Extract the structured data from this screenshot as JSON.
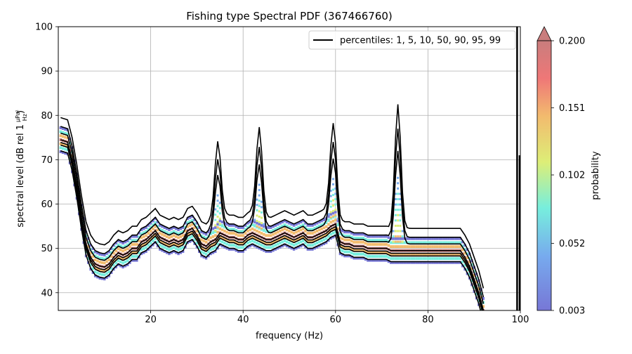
{
  "chart_data": {
    "type": "heatmap",
    "title": "Fishing type Spectral PDF (367466760)",
    "xlabel": "frequency (Hz)",
    "ylabel": "spectral level (dB rel 1",
    "ylabel_unit_num": "μPa²",
    "ylabel_unit_den": "Hz",
    "ylabel_suffix": ")",
    "xlim": [
      0,
      100
    ],
    "ylim": [
      36,
      100
    ],
    "x_ticks": [
      20,
      40,
      60,
      80,
      100
    ],
    "y_ticks": [
      40,
      50,
      60,
      70,
      80,
      90,
      100
    ],
    "grid": true,
    "legend": {
      "position": "top-right",
      "label": "percentiles: 1, 5, 10, 50, 90, 95, 99"
    },
    "colorbar": {
      "label": "probability",
      "ticks": [
        "0.003",
        "0.052",
        "0.102",
        "0.151",
        "0.200"
      ],
      "min": 0.003,
      "max": 0.2,
      "extend": "max"
    },
    "median_curve": {
      "frequency": [
        0.5,
        2,
        3,
        4,
        5,
        6,
        7,
        8,
        9,
        10,
        11,
        12,
        13,
        14,
        15,
        16,
        17,
        18,
        19,
        20,
        21,
        22,
        23,
        24,
        25,
        26,
        27,
        28,
        29,
        30,
        31,
        32,
        33,
        34,
        35,
        36,
        37,
        38,
        39,
        40,
        41,
        42,
        43,
        44,
        45,
        46,
        47,
        48,
        49,
        50,
        51,
        52,
        53,
        54,
        55,
        56,
        57,
        58,
        59,
        60,
        61,
        62,
        63,
        64,
        65,
        66,
        67,
        68,
        69,
        70,
        71,
        72,
        73,
        74,
        75,
        76,
        77,
        78,
        79,
        80,
        81,
        82,
        83,
        84,
        85,
        86,
        87,
        88,
        89,
        90,
        91,
        92
      ],
      "level": [
        74.5,
        74,
        70,
        64,
        57,
        51,
        48,
        46.5,
        46,
        45.8,
        46.5,
        48,
        49,
        48.5,
        49,
        50,
        50,
        51.5,
        52,
        53,
        54,
        52.5,
        52,
        51.5,
        52,
        51.5,
        52,
        54,
        54.5,
        53,
        51,
        50.5,
        51.5,
        52,
        53.5,
        53,
        52.5,
        52.5,
        52,
        52,
        53,
        53.5,
        53,
        52.5,
        52,
        52,
        52.5,
        53,
        53.5,
        53,
        52.5,
        53,
        53.5,
        52.5,
        52.5,
        53,
        53.5,
        54,
        55,
        55.5,
        51.5,
        51,
        51,
        50.5,
        50.5,
        50.5,
        50,
        50,
        50,
        50,
        50,
        49.5,
        49.5,
        49.5,
        49.5,
        49.5,
        49.5,
        49.5,
        49.5,
        49.5,
        49.5,
        49.5,
        49.5,
        49.5,
        49.5,
        49.5,
        49.5,
        48,
        46,
        43,
        40,
        36
      ]
    },
    "percentile_offsets": [
      -2.5,
      -1.2,
      -0.6,
      0,
      1.5,
      3,
      5
    ],
    "peaks": [
      {
        "frequency": 34.5,
        "level": 63
      },
      {
        "frequency": 43.5,
        "level": 65
      },
      {
        "frequency": 59.5,
        "level": 66.5
      },
      {
        "frequency": 73.5,
        "level": 67
      }
    ]
  }
}
